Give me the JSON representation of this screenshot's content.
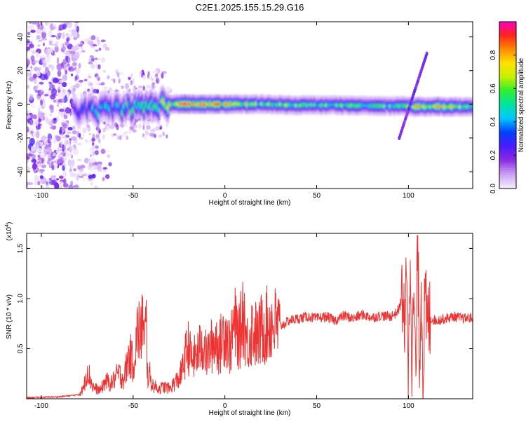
{
  "page": {
    "title": "C2E1.2025.155.15.29.G16"
  },
  "colors": {
    "frame": "#000000",
    "snr_line": "#ee3333",
    "colormap": [
      "#f4eafc",
      "#c9a0f5",
      "#8a2be2",
      "#4a1bff",
      "#0040ff",
      "#00c8ff",
      "#00e3a0",
      "#30ee30",
      "#c8f000",
      "#ffe000",
      "#ff8800",
      "#ff2020",
      "#ff00cc"
    ]
  },
  "chart_data": [
    {
      "type": "heatmap",
      "title": "C2E1.2025.155.15.29.G16",
      "xlabel": "Height of straight line (km)",
      "ylabel": "Frequency (Hz)",
      "xlim": [
        -108,
        135
      ],
      "ylim": [
        -50,
        49
      ],
      "xticks": [
        -100,
        -50,
        0,
        50,
        100
      ],
      "xtick_labels": [
        "-100",
        "-50",
        "0",
        "50",
        "100"
      ],
      "yticks": [
        -40,
        -20,
        0,
        20,
        40
      ],
      "ytick_labels": [
        "-40",
        "-20",
        "0",
        "20",
        "40"
      ],
      "grid": false,
      "colorbar": {
        "label": "Normalized spectral amplitude",
        "range": [
          0,
          1
        ],
        "ticks": [
          0.0,
          0.2,
          0.4,
          0.6,
          0.8
        ],
        "tick_labels": [
          "0.0",
          "0.2",
          "0.4",
          "0.6",
          "0.8"
        ]
      },
      "features": {
        "carrier_ridge": {
          "x": [
            -80,
            -70,
            -60,
            -50,
            -40,
            -30,
            -20,
            -10,
            0,
            10,
            20,
            40,
            60,
            80,
            95,
            100,
            105,
            120,
            135
          ],
          "y": [
            -3,
            -4,
            -2,
            -2,
            -1,
            0,
            0,
            0,
            0,
            0,
            0,
            -0.5,
            -0.5,
            -1,
            -1,
            -1,
            -1.5,
            -1.5,
            -1.5
          ],
          "amplitude": [
            0.3,
            0.45,
            0.5,
            0.5,
            0.55,
            0.7,
            0.9,
            0.85,
            0.75,
            0.7,
            0.6,
            0.6,
            0.55,
            0.55,
            0.6,
            0.65,
            0.75,
            0.7,
            0.6
          ]
        },
        "diagonal_track": {
          "x": [
            95,
            110
          ],
          "y": [
            -20,
            30
          ]
        }
      }
    },
    {
      "type": "line",
      "xlabel": "Height of straight line (km)",
      "ylabel": "SNR (10 * v/v)",
      "yscale_label": "(x10",
      "yscale_exponent": "4",
      "yscale_suffix": ")",
      "xlim": [
        -108,
        135
      ],
      "ylim": [
        0,
        1.65
      ],
      "y_units_multiplier": 10000,
      "xticks": [
        -100,
        -50,
        0,
        50,
        100
      ],
      "xtick_labels": [
        "-100",
        "-50",
        "0",
        "50",
        "100"
      ],
      "yticks": [
        0.5,
        1.0,
        1.5
      ],
      "ytick_labels": [
        "0.5",
        "1.0",
        "1.5"
      ],
      "grid": false,
      "series": [
        {
          "x": [
            -108,
            -90,
            -80,
            -77,
            -75,
            -72,
            -68,
            -65,
            -62,
            -58,
            -55,
            -52,
            -50,
            -48,
            -47,
            -46,
            -45,
            -44,
            -43,
            -42,
            -41,
            -40,
            -38,
            -36,
            -33,
            -30,
            -28,
            -25,
            -23,
            -22,
            -20,
            -18,
            -15,
            -12,
            -10,
            -8,
            -5,
            -3,
            0,
            3,
            5,
            8,
            10,
            12,
            15,
            18,
            20,
            25,
            30,
            35,
            40,
            45,
            50,
            55,
            60,
            65,
            70,
            75,
            80,
            85,
            90,
            93,
            95,
            97,
            98,
            99,
            100,
            101,
            102,
            103,
            104,
            105,
            106,
            107,
            108,
            109,
            110,
            112,
            115,
            120,
            125,
            130,
            135
          ],
          "y": [
            0.01,
            0.02,
            0.04,
            0.1,
            0.3,
            0.12,
            0.08,
            0.18,
            0.15,
            0.25,
            0.2,
            0.45,
            0.35,
            0.6,
            0.75,
            0.5,
            0.92,
            0.45,
            0.8,
            0.2,
            0.25,
            0.15,
            0.12,
            0.1,
            0.12,
            0.1,
            0.15,
            0.2,
            0.3,
            0.4,
            0.52,
            0.38,
            0.45,
            0.55,
            0.42,
            0.5,
            0.6,
            0.5,
            0.7,
            0.5,
            0.75,
            0.6,
            0.9,
            0.55,
            0.7,
            0.6,
            0.7,
            0.75,
            0.72,
            0.78,
            0.8,
            0.82,
            0.8,
            0.82,
            0.78,
            0.83,
            0.8,
            0.84,
            0.81,
            0.83,
            0.82,
            0.85,
            0.9,
            1.05,
            0.5,
            1.5,
            0.15,
            1.6,
            0.3,
            1.1,
            0.1,
            1.6,
            0.4,
            1.1,
            0.25,
            1.0,
            0.75,
            0.8,
            0.78,
            0.8,
            0.82,
            0.8,
            0.81
          ]
        }
      ]
    }
  ]
}
